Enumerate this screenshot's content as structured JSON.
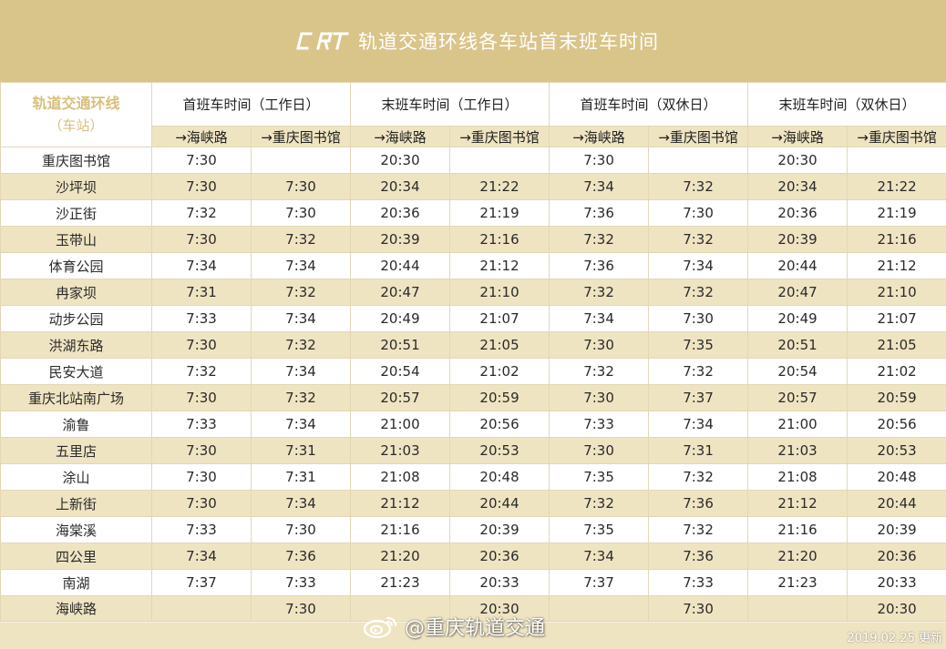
{
  "header": {
    "logo_text": "CRT",
    "title": "轨道交通环线各车站首末班车时间"
  },
  "table": {
    "station_head_line1": "轨道交通环线",
    "station_head_line2": "（车站）",
    "groups": [
      "首班车时间（工作日）",
      "末班车时间（工作日）",
      "首班车时间（双休日）",
      "末班车时间（双休日）"
    ],
    "directions": [
      "→海峡路",
      "→重庆图书馆",
      "→海峡路",
      "→重庆图书馆",
      "→海峡路",
      "→重庆图书馆",
      "→海峡路",
      "→重庆图书馆"
    ],
    "rows": [
      [
        "重庆图书馆",
        "7:30",
        "",
        "20:30",
        "",
        "7:30",
        "",
        "20:30",
        ""
      ],
      [
        "沙坪坝",
        "7:30",
        "7:30",
        "20:34",
        "21:22",
        "7:34",
        "7:32",
        "20:34",
        "21:22"
      ],
      [
        "沙正街",
        "7:32",
        "7:30",
        "20:36",
        "21:19",
        "7:36",
        "7:30",
        "20:36",
        "21:19"
      ],
      [
        "玉带山",
        "7:30",
        "7:32",
        "20:39",
        "21:16",
        "7:32",
        "7:32",
        "20:39",
        "21:16"
      ],
      [
        "体育公园",
        "7:34",
        "7:34",
        "20:44",
        "21:12",
        "7:36",
        "7:34",
        "20:44",
        "21:12"
      ],
      [
        "冉家坝",
        "7:31",
        "7:32",
        "20:47",
        "21:10",
        "7:32",
        "7:32",
        "20:47",
        "21:10"
      ],
      [
        "动步公园",
        "7:33",
        "7:34",
        "20:49",
        "21:07",
        "7:34",
        "7:30",
        "20:49",
        "21:07"
      ],
      [
        "洪湖东路",
        "7:30",
        "7:32",
        "20:51",
        "21:05",
        "7:30",
        "7:35",
        "20:51",
        "21:05"
      ],
      [
        "民安大道",
        "7:32",
        "7:34",
        "20:54",
        "21:02",
        "7:32",
        "7:32",
        "20:54",
        "21:02"
      ],
      [
        "重庆北站南广场",
        "7:30",
        "7:32",
        "20:57",
        "20:59",
        "7:30",
        "7:37",
        "20:57",
        "20:59"
      ],
      [
        "渝鲁",
        "7:33",
        "7:34",
        "21:00",
        "20:56",
        "7:33",
        "7:34",
        "21:00",
        "20:56"
      ],
      [
        "五里店",
        "7:30",
        "7:31",
        "21:03",
        "20:53",
        "7:30",
        "7:31",
        "21:03",
        "20:53"
      ],
      [
        "涂山",
        "7:30",
        "7:31",
        "21:08",
        "20:48",
        "7:35",
        "7:32",
        "21:08",
        "20:48"
      ],
      [
        "上新街",
        "7:30",
        "7:34",
        "21:12",
        "20:44",
        "7:32",
        "7:36",
        "21:12",
        "20:44"
      ],
      [
        "海棠溪",
        "7:33",
        "7:30",
        "21:16",
        "20:39",
        "7:35",
        "7:32",
        "21:16",
        "20:39"
      ],
      [
        "四公里",
        "7:34",
        "7:36",
        "21:20",
        "20:36",
        "7:34",
        "7:36",
        "21:20",
        "20:36"
      ],
      [
        "南湖",
        "7:37",
        "7:33",
        "21:23",
        "20:33",
        "7:37",
        "7:33",
        "21:23",
        "20:33"
      ],
      [
        "海峡路",
        "",
        "7:30",
        "",
        "20:30",
        "",
        "7:30",
        "",
        "20:30"
      ]
    ]
  },
  "watermark": {
    "text": "@重庆轨道交通",
    "icon": "weibo-icon"
  },
  "updated": "2019.02.25 更新",
  "colors": {
    "header_bg": "#d9c489",
    "stripe": "#efe4c2",
    "station_head_text": "#d8bf7d"
  }
}
